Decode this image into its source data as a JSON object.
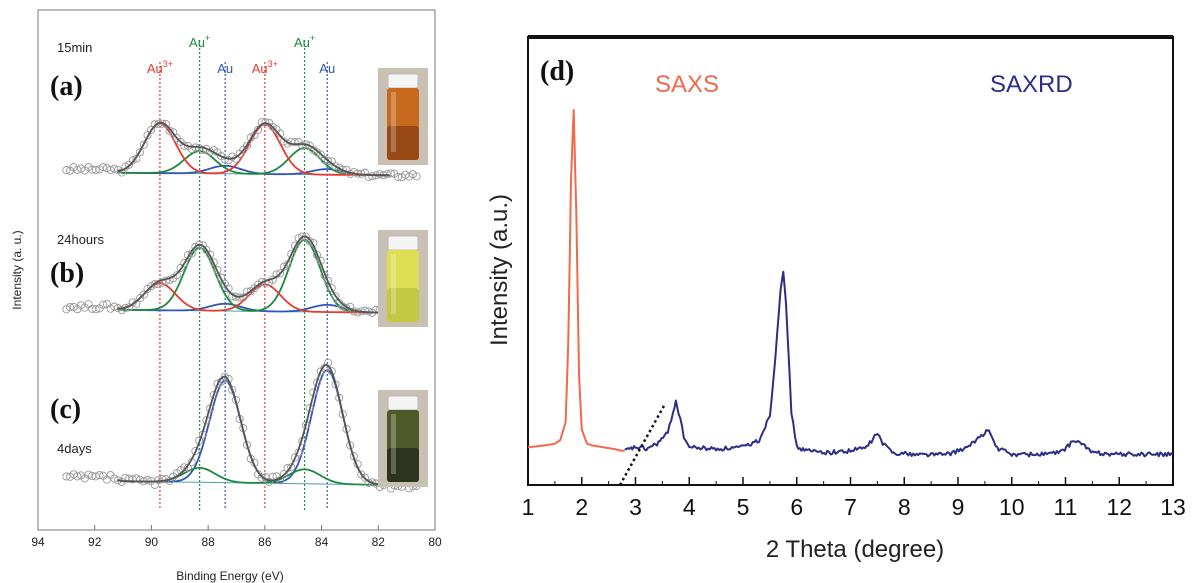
{
  "chart_data": [
    {
      "type": "line",
      "ylabel": "Intensity (a. u.)",
      "xlabel": "Binding Energy (eV)",
      "xlim": [
        94,
        80
      ],
      "xticks": [
        "94",
        "92",
        "90",
        "88",
        "86",
        "84",
        "82",
        "80"
      ],
      "colors": {
        "au3": "#e8392f",
        "au1": "#1b8a3c",
        "au0": "#2f56b8",
        "envelope": "#555555",
        "markers": "#999999"
      },
      "peak_labels": [
        {
          "ion": "Au",
          "charge": "3+",
          "energy": 89.7,
          "color_key": "au3"
        },
        {
          "ion": "Au",
          "charge": "+",
          "energy": 88.3,
          "color_key": "au1"
        },
        {
          "ion": "Au",
          "charge": "",
          "energy": 87.4,
          "color_key": "au0"
        },
        {
          "ion": "Au",
          "charge": "3+",
          "energy": 86.0,
          "color_key": "au3"
        },
        {
          "ion": "Au",
          "charge": "+",
          "energy": 84.6,
          "color_key": "au1"
        },
        {
          "ion": "Au",
          "charge": "",
          "energy": 83.8,
          "color_key": "au0"
        }
      ],
      "panels": [
        {
          "label": "(a)",
          "time": "15min",
          "vial_colors": [
            "#c86a1e",
            "#8a3f12"
          ],
          "peaks": {
            "au3": [
              0.62,
              0.62
            ],
            "au1": [
              0.28,
              0.33
            ],
            "au0": [
              0.1,
              0.07
            ]
          }
        },
        {
          "label": "(b)",
          "time": "24hours",
          "vial_colors": [
            "#dede55",
            "#b9c23c"
          ],
          "peaks": {
            "au3": [
              0.3,
              0.3
            ],
            "au1": [
              0.7,
              0.8
            ],
            "au0": [
              0.08,
              0.08
            ]
          }
        },
        {
          "label": "(c)",
          "time": "4days",
          "vial_colors": [
            "#4f5a2a",
            "#22281a"
          ],
          "peaks": {
            "au3": [
              0.0,
              0.0
            ],
            "au1": [
              0.12,
              0.12
            ],
            "au0": [
              0.85,
              0.95
            ]
          }
        }
      ]
    },
    {
      "type": "line",
      "label": "(d)",
      "ylabel": "Intensity (a.u.)",
      "xlabel": "2 Theta (degree)",
      "xlim": [
        1,
        13
      ],
      "xticks": [
        "1",
        "2",
        "3",
        "4",
        "5",
        "6",
        "7",
        "8",
        "9",
        "10",
        "11",
        "12",
        "13"
      ],
      "series": [
        {
          "name": "SAXS",
          "color": "#f0694a",
          "x": [
            1.0,
            1.3,
            1.5,
            1.6,
            1.7,
            1.75,
            1.8,
            1.85,
            1.9,
            1.95,
            2.0,
            2.1,
            2.2,
            2.4,
            2.6,
            2.75,
            2.8
          ],
          "y": [
            0.05,
            0.055,
            0.06,
            0.07,
            0.12,
            0.35,
            0.8,
            1.0,
            0.7,
            0.25,
            0.1,
            0.06,
            0.055,
            0.05,
            0.045,
            0.04,
            0.04
          ]
        },
        {
          "name": "SAXRD",
          "color": "#2b2f86",
          "x": [
            2.8,
            3.0,
            3.2,
            3.4,
            3.6,
            3.7,
            3.75,
            3.8,
            3.9,
            4.0,
            4.5,
            5.0,
            5.3,
            5.5,
            5.6,
            5.7,
            5.75,
            5.8,
            5.9,
            6.0,
            6.2,
            6.6,
            7.0,
            7.3,
            7.45,
            7.5,
            7.6,
            7.8,
            8.2,
            8.8,
            9.2,
            9.4,
            9.5,
            9.55,
            9.6,
            9.7,
            10.0,
            10.5,
            10.9,
            11.1,
            11.2,
            11.3,
            11.5,
            12.0,
            12.5,
            13.0
          ],
          "y": [
            0.04,
            0.05,
            0.045,
            0.06,
            0.09,
            0.15,
            0.18,
            0.15,
            0.08,
            0.05,
            0.045,
            0.05,
            0.07,
            0.14,
            0.3,
            0.5,
            0.55,
            0.45,
            0.15,
            0.05,
            0.04,
            0.035,
            0.04,
            0.05,
            0.08,
            0.09,
            0.06,
            0.035,
            0.03,
            0.03,
            0.05,
            0.08,
            0.09,
            0.1,
            0.09,
            0.05,
            0.03,
            0.03,
            0.035,
            0.06,
            0.07,
            0.06,
            0.035,
            0.03,
            0.03,
            0.03
          ]
        }
      ]
    }
  ]
}
